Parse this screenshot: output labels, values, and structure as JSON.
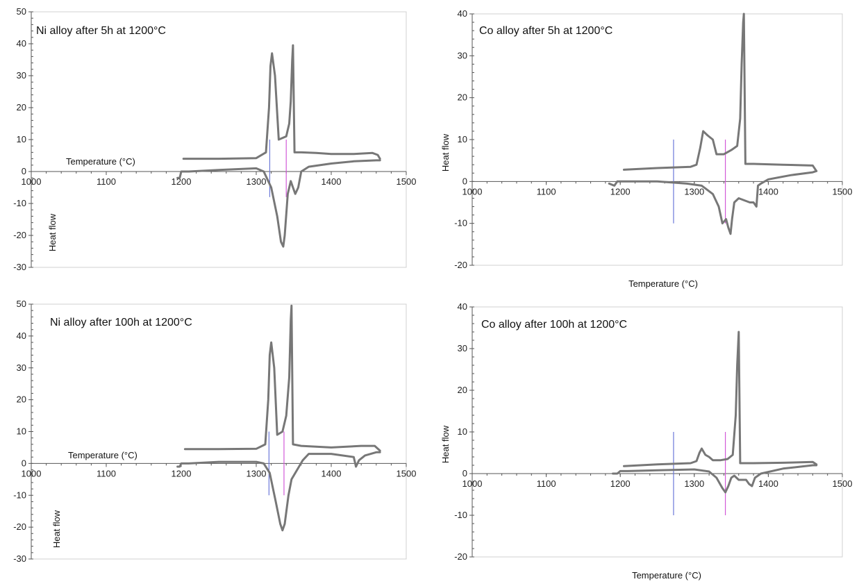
{
  "chart_data": [
    {
      "type": "line",
      "title": "Ni alloy after 5h at 1200°C",
      "xlabel": "Temperature (°C)",
      "ylabel": "Heat flow",
      "xlim": [
        1000,
        1500
      ],
      "ylim": [
        -30,
        50
      ],
      "xticks": [
        1000,
        1100,
        1200,
        1300,
        1400,
        1500
      ],
      "yticks": [
        -30,
        -20,
        -10,
        0,
        10,
        20,
        30,
        40,
        50
      ],
      "grid": false,
      "legend": "none",
      "colors": {
        "curve": "#777777",
        "blue_line": "#6b78d8",
        "magenta_line": "#d25ad8"
      },
      "markers": {
        "blue_x": 1318,
        "blue_range": [
          -8,
          10
        ],
        "magenta_x": 1340,
        "magenta_range": [
          -8,
          10
        ]
      },
      "series": [
        {
          "x": [
            1203,
            1250,
            1300,
            1313,
            1317,
            1319,
            1321,
            1325,
            1330,
            1340,
            1344,
            1346,
            1348,
            1349,
            1351,
            1360,
            1380,
            1400,
            1430,
            1455,
            1462,
            1465
          ],
          "values": [
            4,
            4,
            4.2,
            6,
            20,
            33,
            37,
            30,
            10,
            11,
            15,
            22,
            35,
            39.5,
            6,
            6,
            5.8,
            5.5,
            5.5,
            5.8,
            5.2,
            4
          ]
        },
        {
          "x": [
            1195,
            1198,
            1200,
            1210,
            1250,
            1300,
            1310,
            1320,
            1328,
            1333,
            1336,
            1338,
            1342,
            1346,
            1349,
            1352,
            1356,
            1360,
            1370,
            1400,
            1430,
            1460,
            1465
          ],
          "values": [
            -2,
            -2,
            0,
            0,
            0.5,
            1,
            0,
            -5,
            -14,
            -22,
            -23.5,
            -20,
            -7,
            -3,
            -5,
            -7,
            -5,
            0,
            1.5,
            2.5,
            3.2,
            3.5,
            3.5
          ]
        }
      ]
    },
    {
      "type": "line",
      "title": "Co alloy after 5h at 1200°C",
      "xlabel": "Temperature (°C)",
      "ylabel": "Heat flow",
      "xlim": [
        1000,
        1500
      ],
      "ylim": [
        -20,
        40
      ],
      "xticks": [
        1000,
        1100,
        1200,
        1300,
        1400,
        1500
      ],
      "yticks": [
        -20,
        -10,
        0,
        10,
        20,
        30,
        40
      ],
      "grid": false,
      "legend": "none",
      "colors": {
        "curve": "#777777",
        "blue_line": "#6b78d8",
        "magenta_line": "#d25ad8"
      },
      "markers": {
        "blue_x": 1272,
        "blue_range": [
          -10,
          10
        ],
        "magenta_x": 1342,
        "magenta_range": [
          -10,
          10
        ]
      },
      "series": [
        {
          "x": [
            1205,
            1250,
            1295,
            1303,
            1308,
            1312,
            1318,
            1325,
            1330,
            1340,
            1350,
            1358,
            1362,
            1364,
            1366,
            1367,
            1369,
            1380,
            1420,
            1460,
            1465
          ],
          "values": [
            2.8,
            3.2,
            3.5,
            4,
            8,
            12,
            11,
            10,
            6.5,
            6.5,
            7.5,
            8.5,
            15,
            28,
            38,
            40,
            4.2,
            4.2,
            4,
            3.8,
            2.5
          ]
        },
        {
          "x": [
            1185,
            1192,
            1196,
            1210,
            1250,
            1290,
            1310,
            1325,
            1333,
            1338,
            1343,
            1346,
            1349,
            1351,
            1354,
            1360,
            1375,
            1380,
            1384,
            1386,
            1390,
            1400,
            1430,
            1460,
            1465
          ],
          "values": [
            -0.5,
            -1,
            0,
            0,
            0,
            -0.5,
            -1,
            -3,
            -6,
            -10,
            -9,
            -11,
            -12.5,
            -9,
            -5,
            -4,
            -5,
            -5,
            -6,
            -1,
            -0.5,
            0.5,
            1.5,
            2.2,
            2.5
          ]
        }
      ]
    },
    {
      "type": "line",
      "title": "Ni alloy after 100h at 1200°C",
      "xlabel": "Temperature (°C)",
      "ylabel": "Heat flow",
      "xlim": [
        1000,
        1500
      ],
      "ylim": [
        -30,
        50
      ],
      "xticks": [
        1000,
        1100,
        1200,
        1300,
        1400,
        1500
      ],
      "yticks": [
        -30,
        -20,
        -10,
        0,
        10,
        20,
        30,
        40,
        50
      ],
      "grid": false,
      "legend": "none",
      "colors": {
        "curve": "#777777",
        "blue_line": "#6b78d8",
        "magenta_line": "#d25ad8"
      },
      "markers": {
        "blue_x": 1317,
        "blue_range": [
          -10,
          10
        ],
        "magenta_x": 1337,
        "magenta_range": [
          -10,
          10
        ]
      },
      "series": [
        {
          "x": [
            1205,
            1250,
            1300,
            1312,
            1316,
            1318,
            1320,
            1324,
            1328,
            1335,
            1340,
            1344,
            1346,
            1347,
            1349,
            1360,
            1400,
            1440,
            1458,
            1465
          ],
          "values": [
            4.5,
            4.5,
            4.6,
            6,
            20,
            34,
            38,
            30,
            9,
            10,
            15,
            27,
            45,
            49.5,
            6,
            5.5,
            5,
            5.5,
            5.5,
            4
          ]
        },
        {
          "x": [
            1195,
            1198,
            1200,
            1210,
            1250,
            1300,
            1310,
            1318,
            1326,
            1332,
            1335,
            1338,
            1343,
            1347,
            1352,
            1357,
            1362,
            1370,
            1400,
            1430,
            1433,
            1437,
            1445,
            1460,
            1465
          ],
          "values": [
            -1,
            -1,
            0,
            0,
            0.5,
            0.5,
            0,
            -3,
            -12,
            -19,
            -21,
            -19,
            -10,
            -5,
            -3,
            -1,
            1,
            3,
            3,
            2,
            -1,
            1,
            2.5,
            3.5,
            3.5
          ]
        }
      ]
    },
    {
      "type": "line",
      "title": "Co alloy after 100h at 1200°C",
      "xlabel": "Temperature (°C)",
      "ylabel": "Heat flow",
      "xlim": [
        1000,
        1500
      ],
      "ylim": [
        -20,
        40
      ],
      "xticks": [
        1000,
        1100,
        1200,
        1300,
        1400,
        1500
      ],
      "yticks": [
        -20,
        -10,
        0,
        10,
        20,
        30,
        40
      ],
      "grid": false,
      "legend": "none",
      "colors": {
        "curve": "#777777",
        "blue_line": "#6b78d8",
        "magenta_line": "#d25ad8"
      },
      "markers": {
        "blue_x": 1272,
        "blue_range": [
          -10,
          10
        ],
        "magenta_x": 1342,
        "magenta_range": [
          -10,
          10
        ]
      },
      "series": [
        {
          "x": [
            1205,
            1250,
            1295,
            1303,
            1307,
            1310,
            1315,
            1320,
            1325,
            1335,
            1345,
            1352,
            1356,
            1358,
            1360,
            1362,
            1380,
            1420,
            1460,
            1465
          ],
          "values": [
            1.8,
            2.2,
            2.5,
            3,
            5,
            6,
            4.5,
            4,
            3.2,
            3.2,
            3.5,
            4.5,
            14,
            26,
            34,
            2.5,
            2.5,
            2.6,
            2.8,
            2.2
          ]
        },
        {
          "x": [
            1190,
            1196,
            1200,
            1210,
            1250,
            1300,
            1320,
            1330,
            1338,
            1342,
            1346,
            1350,
            1354,
            1360,
            1370,
            1374,
            1378,
            1382,
            1390,
            1420,
            1460,
            1465
          ],
          "values": [
            0,
            0,
            0.6,
            0.6,
            0.8,
            1,
            0.5,
            -1,
            -3.5,
            -4.5,
            -3,
            -1,
            -0.5,
            -1.5,
            -1.5,
            -2.5,
            -3,
            -1,
            0,
            1.2,
            2,
            2
          ]
        }
      ]
    }
  ]
}
